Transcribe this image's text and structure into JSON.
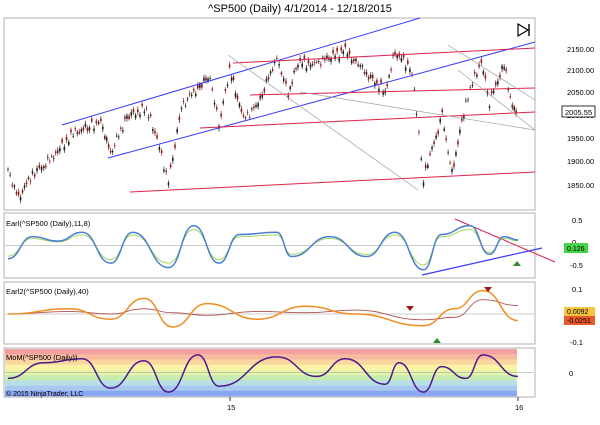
{
  "title": "^SP500 (Daily)  4/1/2014 - 12/18/2015",
  "copyright": "© 2015 NinjaTrader, LLC",
  "colors": {
    "price_up": "#1e1e1e",
    "price_down": "#8b1a1a",
    "channel_blue": "#3a3aff",
    "channel_red": "#e0204a",
    "fan_gray": "#a0a0a0",
    "earl_line": "#4a7fd4",
    "earl_signal": "#9ad24a",
    "earl2_line": "#f28c1e",
    "earl2_signal": "#b05050",
    "mom_line": "#4b1a8c",
    "last_price_box": "#ffffff",
    "earl_value_box": "#46d346",
    "earl2_value_box_a": "#f5c542",
    "earl2_value_box_b": "#e85a2a",
    "arrow_up": "#2e8b2e",
    "arrow_down": "#9b1b1b"
  },
  "x_axis": {
    "labels": [
      "15",
      "16"
    ]
  },
  "panels": {
    "price": {
      "y_ticks": [
        "2150.00",
        "2100.00",
        "2050.00",
        "2000.00",
        "1950.00",
        "1900.00",
        "1850.00"
      ],
      "last_value": "2005.55"
    },
    "earl": {
      "label": "Earl(^SP500 (Daily),11,8)",
      "y_ticks": [
        "0.5",
        "0",
        "-0.5"
      ],
      "value": "0.126"
    },
    "earl2": {
      "label": "Earl2(^SP500 (Daily),40)",
      "y_ticks": [
        "0.1",
        "0",
        "-0.1"
      ],
      "values": [
        "0.0092",
        "-0.0251"
      ]
    },
    "mom": {
      "label": "MoM(^SP500 (Daily))",
      "y_ticks": [
        "0"
      ],
      "bands": [
        "#f4a0a0",
        "#f7bca0",
        "#fad6a0",
        "#fdf3a6",
        "#e6f5a8",
        "#c8ecb0",
        "#b8e0e4",
        "#a8c8f0",
        "#8aa6f0"
      ]
    }
  },
  "chart_data": {
    "type": "line",
    "title": "^SP500 (Daily)  4/1/2014 - 12/18/2015",
    "x_range": [
      "2014-04-01",
      "2015-12-18"
    ],
    "x_ticks": [
      "15",
      "16"
    ],
    "price_ylim": [
      1810,
      2190
    ],
    "price_close": [
      [
        "2014-04-01",
        1885
      ],
      [
        "2014-04-14",
        1830
      ],
      [
        "2014-05-01",
        1880
      ],
      [
        "2014-05-15",
        1895
      ],
      [
        "2014-06-01",
        1925
      ],
      [
        "2014-06-20",
        1960
      ],
      [
        "2014-07-10",
        1975
      ],
      [
        "2014-07-24",
        1985
      ],
      [
        "2014-08-05",
        1920
      ],
      [
        "2014-08-25",
        1995
      ],
      [
        "2014-09-18",
        2010
      ],
      [
        "2014-10-01",
        1950
      ],
      [
        "2014-10-15",
        1862
      ],
      [
        "2014-10-31",
        2015
      ],
      [
        "2014-11-20",
        2055
      ],
      [
        "2014-12-05",
        2075
      ],
      [
        "2014-12-16",
        1975
      ],
      [
        "2014-12-29",
        2090
      ],
      [
        "2015-01-15",
        1990
      ],
      [
        "2015-02-02",
        2020
      ],
      [
        "2015-02-25",
        2115
      ],
      [
        "2015-03-11",
        2040
      ],
      [
        "2015-03-23",
        2105
      ],
      [
        "2015-04-10",
        2100
      ],
      [
        "2015-05-20",
        2128
      ],
      [
        "2015-06-10",
        2090
      ],
      [
        "2015-07-08",
        2045
      ],
      [
        "2015-07-20",
        2125
      ],
      [
        "2015-08-10",
        2090
      ],
      [
        "2015-08-24",
        1868
      ],
      [
        "2015-09-01",
        1915
      ],
      [
        "2015-09-16",
        1995
      ],
      [
        "2015-09-28",
        1880
      ],
      [
        "2015-10-15",
        2025
      ],
      [
        "2015-11-03",
        2110
      ],
      [
        "2015-11-13",
        2025
      ],
      [
        "2015-12-01",
        2100
      ],
      [
        "2015-12-11",
        2010
      ],
      [
        "2015-12-18",
        2005.55
      ]
    ],
    "earl": [
      [
        "2014-04-01",
        -0.3
      ],
      [
        "2014-05-01",
        0.2
      ],
      [
        "2014-06-01",
        0.1
      ],
      [
        "2014-07-01",
        0.3
      ],
      [
        "2014-08-05",
        -0.4
      ],
      [
        "2014-09-01",
        0.3
      ],
      [
        "2014-10-15",
        -0.5
      ],
      [
        "2014-11-15",
        0.45
      ],
      [
        "2014-12-16",
        -0.4
      ],
      [
        "2015-01-10",
        0.25
      ],
      [
        "2015-02-25",
        0.3
      ],
      [
        "2015-03-15",
        -0.25
      ],
      [
        "2015-05-01",
        0.2
      ],
      [
        "2015-06-15",
        -0.25
      ],
      [
        "2015-07-20",
        0.3
      ],
      [
        "2015-08-24",
        -0.55
      ],
      [
        "2015-09-15",
        0.25
      ],
      [
        "2015-10-20",
        0.45
      ],
      [
        "2015-11-13",
        -0.2
      ],
      [
        "2015-12-01",
        0.2
      ],
      [
        "2015-12-18",
        0.126
      ]
    ],
    "earl2": [
      [
        "2014-04-01",
        0.0
      ],
      [
        "2014-06-15",
        0.02
      ],
      [
        "2014-08-05",
        -0.02
      ],
      [
        "2014-09-15",
        0.06
      ],
      [
        "2014-10-20",
        -0.05
      ],
      [
        "2014-12-01",
        0.04
      ],
      [
        "2015-02-01",
        -0.02
      ],
      [
        "2015-04-01",
        0.03
      ],
      [
        "2015-06-01",
        0.0
      ],
      [
        "2015-08-24",
        -0.045
      ],
      [
        "2015-10-01",
        0.02
      ],
      [
        "2015-11-05",
        0.09
      ],
      [
        "2015-12-18",
        -0.0251
      ]
    ],
    "mom": [
      [
        "2014-04-01",
        -0.3
      ],
      [
        "2014-05-15",
        0.5
      ],
      [
        "2014-07-01",
        0.7
      ],
      [
        "2014-08-05",
        -0.8
      ],
      [
        "2014-09-15",
        0.6
      ],
      [
        "2014-10-15",
        -1.0
      ],
      [
        "2014-11-20",
        0.9
      ],
      [
        "2014-12-16",
        -0.7
      ],
      [
        "2015-02-25",
        0.8
      ],
      [
        "2015-04-15",
        -0.2
      ],
      [
        "2015-05-20",
        0.7
      ],
      [
        "2015-07-08",
        -0.6
      ],
      [
        "2015-07-25",
        0.5
      ],
      [
        "2015-08-24",
        -1.0
      ],
      [
        "2015-09-15",
        0.3
      ],
      [
        "2015-10-15",
        -0.3
      ],
      [
        "2015-11-05",
        0.9
      ],
      [
        "2015-12-18",
        -0.2
      ]
    ]
  }
}
